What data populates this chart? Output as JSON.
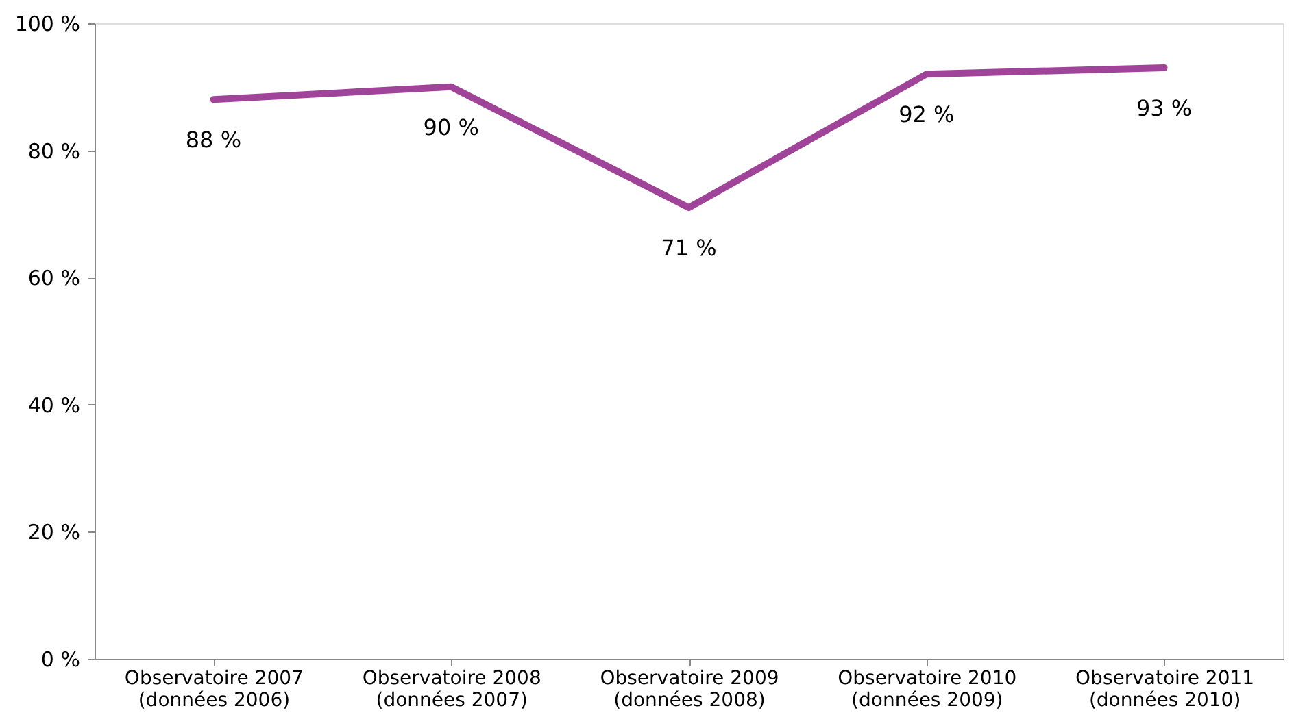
{
  "chart_data": {
    "type": "line",
    "categories": [
      "Observatoire 2007\n(données 2006)",
      "Observatoire 2008\n(données 2007)",
      "Observatoire 2009\n(données 2008)",
      "Observatoire 2010\n(données 2009)",
      "Observatoire 2011\n(données 2010)"
    ],
    "series": [
      {
        "color": "#a0449a",
        "values": [
          88,
          90,
          71,
          92,
          93
        ],
        "value_labels": [
          "88 %",
          "90 %",
          "71 %",
          "92 %",
          "93 %"
        ]
      }
    ],
    "ylim": [
      0,
      100
    ],
    "yticks": [
      {
        "value": 0,
        "label": "0 %"
      },
      {
        "value": 20,
        "label": "20 %"
      },
      {
        "value": 40,
        "label": "40 %"
      },
      {
        "value": 60,
        "label": "60 %"
      },
      {
        "value": 80,
        "label": "80 %"
      },
      {
        "value": 100,
        "label": "100 %"
      }
    ],
    "grid": false,
    "marker": "none",
    "line_style": "solid"
  }
}
